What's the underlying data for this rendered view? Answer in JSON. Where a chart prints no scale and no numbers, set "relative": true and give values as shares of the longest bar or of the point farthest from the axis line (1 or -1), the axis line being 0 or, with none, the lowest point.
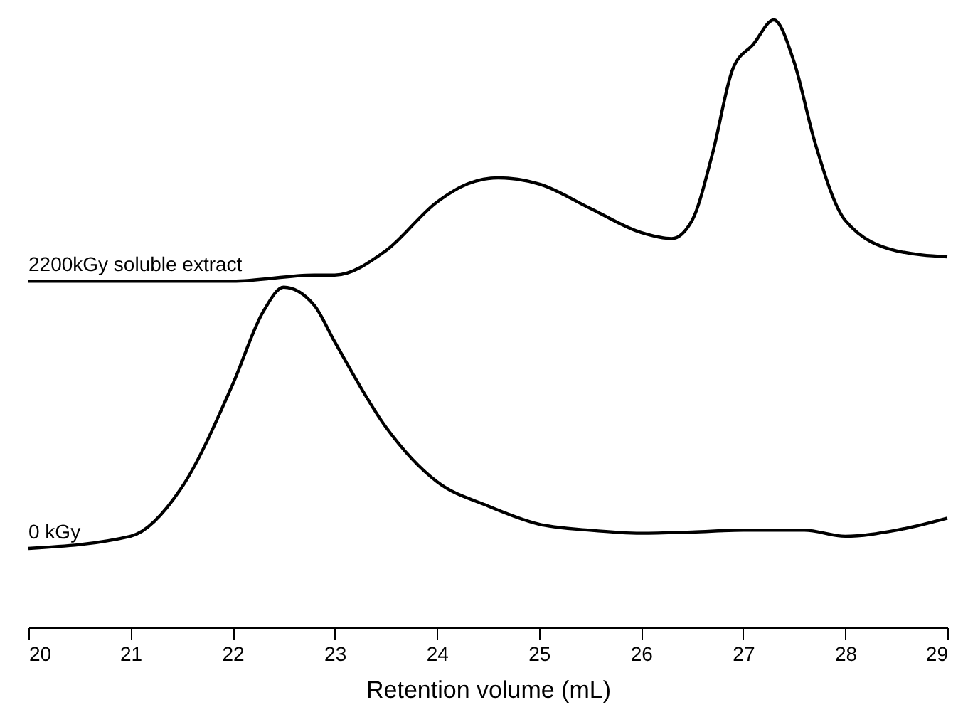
{
  "chart_data": {
    "type": "line",
    "relative": true,
    "xlabel": "Retention volume (mL)",
    "xlim": [
      20,
      29
    ],
    "xticks": [
      20,
      21,
      22,
      23,
      24,
      25,
      26,
      27,
      28,
      29
    ],
    "grid": false,
    "legend": false,
    "marker": "none",
    "line_style": "solid",
    "series": [
      {
        "name": "2200kGy soluble extract",
        "color": "#000000",
        "x": [
          20,
          21,
          22,
          22.8,
          23,
          23.5,
          24,
          24.3,
          24.6,
          25,
          25.5,
          26,
          26.3,
          26.5,
          26.7,
          26.9,
          27.1,
          27.3,
          27.5,
          27.7,
          28,
          28.5,
          29
        ],
        "values": [
          0.57,
          0.57,
          0.57,
          0.58,
          0.58,
          0.62,
          0.7,
          0.73,
          0.74,
          0.73,
          0.69,
          0.65,
          0.64,
          0.67,
          0.78,
          0.92,
          0.96,
          1.0,
          0.93,
          0.8,
          0.67,
          0.62,
          0.61
        ]
      },
      {
        "name": "0 kGy",
        "color": "#000000",
        "x": [
          20,
          21,
          21.5,
          22,
          22.3,
          22.5,
          22.8,
          23,
          23.5,
          24,
          24.5,
          25,
          25.5,
          26,
          26.5,
          27,
          27.3,
          27.6,
          28,
          28.5,
          29
        ],
        "values": [
          0.13,
          0.15,
          0.23,
          0.4,
          0.52,
          0.56,
          0.53,
          0.47,
          0.33,
          0.24,
          0.2,
          0.17,
          0.16,
          0.155,
          0.157,
          0.16,
          0.16,
          0.16,
          0.15,
          0.16,
          0.18
        ]
      }
    ]
  }
}
